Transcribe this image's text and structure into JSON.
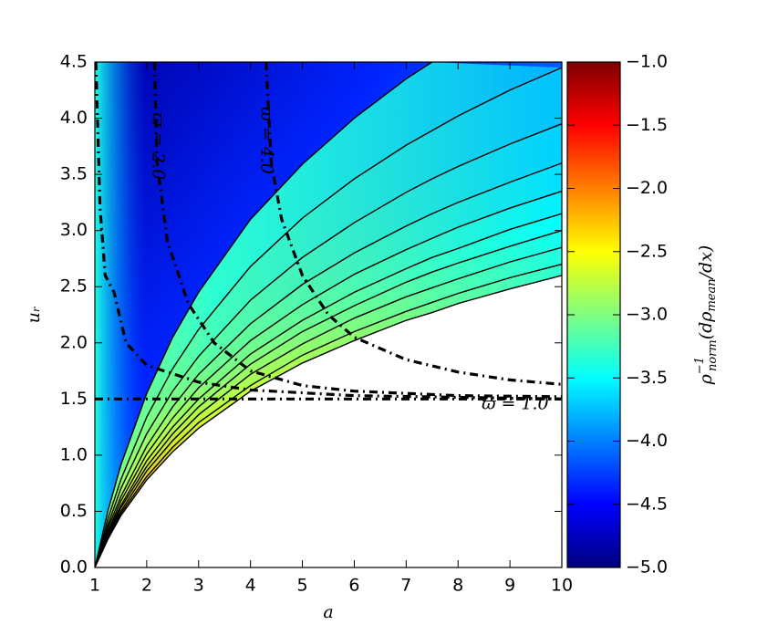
{
  "chart_data": {
    "type": "contour",
    "x_label": "a",
    "y_label": "uᵣ",
    "colorbar_label": {
      "base": "ρ",
      "sup": "−1",
      "sub": "norm",
      "mid": "(dρ",
      "sub2": "mean",
      "tail": "/dx)"
    },
    "xlim": [
      1,
      10
    ],
    "xticks": [
      1,
      2,
      3,
      4,
      5,
      6,
      7,
      8,
      9,
      10
    ],
    "ylim": [
      0,
      4.5
    ],
    "yticks": [
      {
        "value": 0,
        "label": "0.0"
      },
      {
        "value": 0.5,
        "label": "0.5"
      },
      {
        "value": 1,
        "label": "1.0"
      },
      {
        "value": 1.5,
        "label": "1.5"
      },
      {
        "value": 2,
        "label": "2.0"
      },
      {
        "value": 2.5,
        "label": "2.5"
      },
      {
        "value": 3,
        "label": "3.0"
      },
      {
        "value": 3.5,
        "label": "3.5"
      },
      {
        "value": 4,
        "label": "4.0"
      },
      {
        "value": 4.5,
        "label": "4.5"
      }
    ],
    "clim": [
      -5,
      -1
    ],
    "cticks": [
      {
        "value": -1,
        "label": "−1.0"
      },
      {
        "value": -1.5,
        "label": "−1.5"
      },
      {
        "value": -2,
        "label": "−2.0"
      },
      {
        "value": -2.5,
        "label": "−2.5"
      },
      {
        "value": -3,
        "label": "−3.0"
      },
      {
        "value": -3.5,
        "label": "−3.5"
      },
      {
        "value": -4,
        "label": "−4.0"
      },
      {
        "value": -4.5,
        "label": "−4.5"
      },
      {
        "value": -5,
        "label": "−5.0"
      }
    ],
    "colormap": [
      "#00007f",
      "#0000ff",
      "#007fff",
      "#00ffff",
      "#7fff7f",
      "#ffff00",
      "#ff7f00",
      "#ff0000",
      "#7f0000"
    ],
    "line_color": "#000000",
    "x": [
      1,
      1.25,
      1.5,
      2,
      2.5,
      3,
      4,
      5,
      6,
      7,
      7.5,
      8,
      9,
      10
    ],
    "series": [
      {
        "values": [
          0,
          0.5,
          0.91,
          1.55,
          2.05,
          2.45,
          3.1,
          3.59,
          4.0,
          4.35,
          4.5,
          null,
          null,
          null
        ]
      },
      {
        "values": [
          0,
          0.43,
          0.78,
          1.34,
          1.77,
          2.12,
          2.68,
          3.11,
          3.46,
          3.76,
          3.89,
          4.02,
          4.25,
          4.45
        ]
      },
      {
        "values": [
          0,
          0.38,
          0.7,
          1.19,
          1.57,
          1.88,
          2.38,
          2.76,
          3.07,
          3.34,
          3.46,
          3.57,
          3.77,
          3.95
        ]
      },
      {
        "values": [
          0,
          0.35,
          0.63,
          1.08,
          1.43,
          1.72,
          2.17,
          2.52,
          2.8,
          3.04,
          3.15,
          3.25,
          3.43,
          3.6
        ]
      },
      {
        "values": [
          0,
          0.32,
          0.59,
          1.01,
          1.33,
          1.6,
          2.02,
          2.34,
          2.61,
          2.83,
          2.93,
          3.03,
          3.2,
          3.35
        ]
      },
      {
        "values": [
          0,
          0.31,
          0.55,
          0.95,
          1.25,
          1.5,
          1.9,
          2.2,
          2.45,
          2.66,
          2.76,
          2.84,
          3.01,
          3.15
        ]
      },
      {
        "values": [
          0,
          0.29,
          0.53,
          0.9,
          1.19,
          1.43,
          1.81,
          2.1,
          2.33,
          2.54,
          2.63,
          2.71,
          2.86,
          3.0
        ]
      },
      {
        "values": [
          0,
          0.28,
          0.5,
          0.86,
          1.13,
          1.36,
          1.72,
          1.99,
          2.22,
          2.41,
          2.49,
          2.57,
          2.72,
          2.85
        ]
      },
      {
        "values": [
          0,
          0.26,
          0.48,
          0.81,
          1.07,
          1.29,
          1.62,
          1.89,
          2.1,
          2.28,
          2.36,
          2.44,
          2.58,
          2.7
        ]
      },
      {
        "values": [
          0,
          0.25,
          0.46,
          0.78,
          1.03,
          1.24,
          1.57,
          1.82,
          2.02,
          2.2,
          2.27,
          2.35,
          2.48,
          2.6
        ]
      }
    ],
    "contours": [
      {
        "name": "ϖ = 2.0",
        "x": [
          2.15,
          2.2,
          2.4,
          2.8,
          3.3,
          4,
          5,
          6,
          8,
          10
        ],
        "values": [
          4.5,
          3.6,
          2.9,
          2.35,
          2.0,
          1.75,
          1.62,
          1.57,
          1.53,
          1.52
        ]
      },
      {
        "name": "ϖ = 4.0",
        "x": [
          4.3,
          4.4,
          4.6,
          5,
          5.5,
          6,
          7,
          8,
          9,
          10
        ],
        "values": [
          4.5,
          3.6,
          3.1,
          2.6,
          2.25,
          2.05,
          1.85,
          1.74,
          1.67,
          1.63
        ]
      },
      {
        "name": "ϖ = 1.0",
        "x": [
          1,
          10
        ],
        "values": [
          1.5,
          1.5
        ]
      },
      {
        "x": [
          1.02,
          1.1,
          1.2,
          1.37,
          1.6,
          2,
          3,
          4,
          6,
          10
        ],
        "values": [
          4.5,
          3.2,
          2.6,
          2.45,
          2.0,
          1.8,
          1.65,
          1.58,
          1.53,
          1.5
        ]
      }
    ]
  }
}
